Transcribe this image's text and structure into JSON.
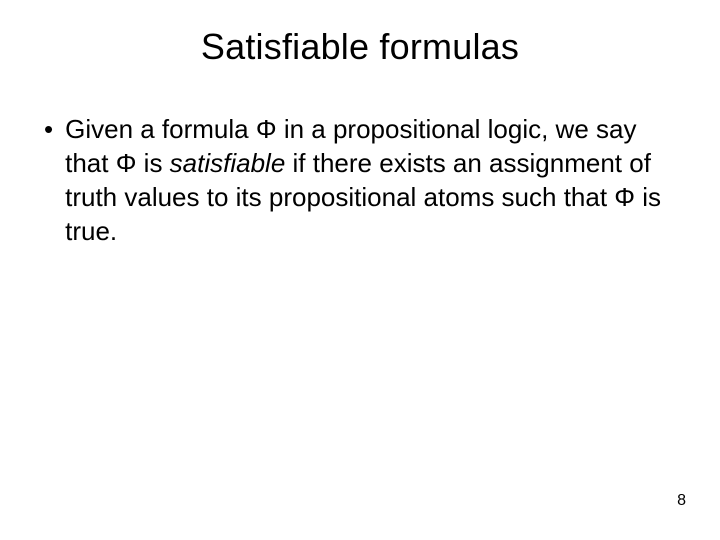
{
  "slide": {
    "title": "Satisfiable formulas",
    "bullet": {
      "marker": "•",
      "seg1": "Given a formula Φ in a propositional logic, we say that Φ is ",
      "italic": "satisfiable",
      "seg2": " if there exists an assignment of truth values to its propositional atoms such that Φ is true."
    },
    "page_number": "8",
    "colors": {
      "background": "#ffffff",
      "text": "#000000"
    },
    "typography": {
      "title_fontsize": 36,
      "body_fontsize": 26,
      "pagenum_fontsize": 16,
      "font_family": "Arial"
    }
  }
}
